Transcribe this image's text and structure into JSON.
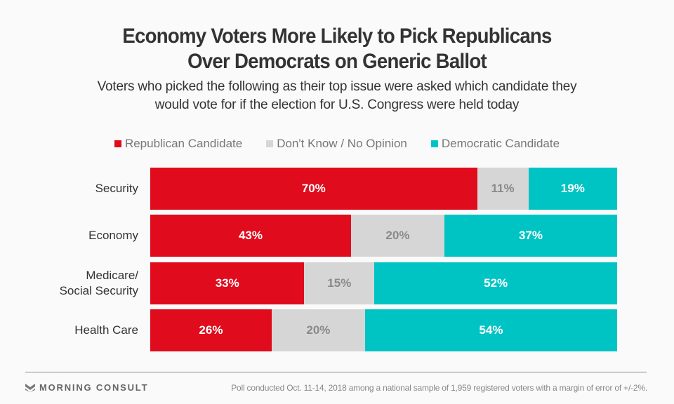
{
  "header": {
    "title_line1": "Economy Voters More Likely to Pick Republicans",
    "title_line2": "Over Democrats on Generic Ballot",
    "subtitle_line1": "Voters who picked the following as their top issue were asked which candidate they",
    "subtitle_line2": "would vote for if the election for U.S. Congress were held today"
  },
  "footer": {
    "brand": "MORNING CONSULT",
    "note": "Poll conducted Oct. 11-14, 2018 among a national sample of 1,959 registered voters with a margin of error of +/-2%."
  },
  "colors": {
    "republican": "#e00b1c",
    "dont_know": "#d6d6d6",
    "democratic": "#00c4c4",
    "background": "#fafafa"
  },
  "chart_data": {
    "type": "bar",
    "orientation": "horizontal",
    "stacked": true,
    "normalized_to": 100,
    "title": "Economy Voters More Likely to Pick Republicans Over Democrats on Generic Ballot",
    "subtitle": "Voters who picked the following as their top issue were asked which candidate they would vote for if the election for U.S. Congress were held today",
    "xlabel": "",
    "ylabel": "",
    "legend_position": "top-center",
    "grid": false,
    "categories": [
      "Security",
      "Economy",
      "Medicare/\nSocial Security",
      "Health Care"
    ],
    "category_labels": [
      [
        "Security"
      ],
      [
        "Economy"
      ],
      [
        "Medicare/",
        "Social Security"
      ],
      [
        "Health Care"
      ]
    ],
    "series": [
      {
        "name": "Republican Candidate",
        "key": "rep",
        "values": [
          70,
          43,
          33,
          26
        ]
      },
      {
        "name": "Don't Know / No Opinion",
        "key": "dk",
        "values": [
          11,
          20,
          15,
          20
        ]
      },
      {
        "name": "Democratic Candidate",
        "key": "dem",
        "values": [
          19,
          37,
          52,
          54
        ]
      }
    ],
    "value_format": "{v}%"
  }
}
